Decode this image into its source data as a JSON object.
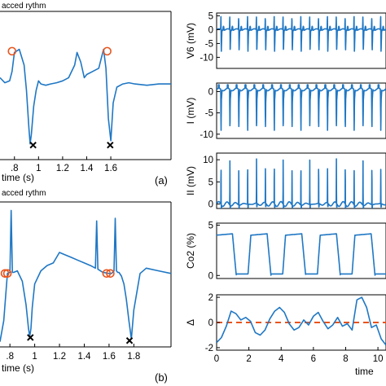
{
  "chart_data": [
    {
      "type": "line",
      "title": "acced rythm",
      "xlabel": "time (s)",
      "panel_label": "(a)",
      "xlim": [
        0.68,
        2.1
      ],
      "ylim": [
        -1.2,
        1.1
      ],
      "x_ticks": [
        0.8,
        1,
        1.2,
        1.4,
        1.6
      ],
      "x_tick_labels": [
        ".8",
        "1",
        "1.2",
        "1.4",
        "1.6"
      ],
      "series": [
        {
          "x": [
            0.68,
            0.72,
            0.76,
            0.78,
            0.8,
            0.84,
            0.88,
            0.9,
            0.92,
            0.93,
            0.94,
            0.96,
            0.98,
            1.0,
            1.02,
            1.06,
            1.1,
            1.15,
            1.2,
            1.25,
            1.3,
            1.32,
            1.35,
            1.38,
            1.4,
            1.45,
            1.5,
            1.52,
            1.54,
            1.56,
            1.58,
            1.6,
            1.62,
            1.65,
            1.7,
            1.75,
            1.8,
            1.9,
            2.0,
            2.1
          ],
          "y": [
            0.1,
            0.02,
            0.05,
            0.2,
            0.5,
            0.55,
            0.3,
            -0.1,
            -0.7,
            -0.95,
            -0.8,
            -0.35,
            -0.1,
            0.05,
            0.0,
            -0.02,
            0.0,
            0.02,
            0.05,
            0.1,
            0.3,
            0.5,
            0.35,
            0.1,
            0.15,
            0.2,
            0.25,
            0.4,
            0.55,
            0.25,
            -0.55,
            -0.9,
            -0.3,
            -0.05,
            0.0,
            0.02,
            0.0,
            -0.02,
            0.0,
            0.0
          ]
        }
      ],
      "markers_circle": [
        {
          "x": 0.78,
          "y": 0.52
        },
        {
          "x": 1.57,
          "y": 0.52
        }
      ],
      "markers_x": [
        {
          "x": 0.955,
          "y": -0.97
        },
        {
          "x": 1.595,
          "y": -0.97
        }
      ]
    },
    {
      "type": "line",
      "title": "acced rythm",
      "xlabel": "time (s)",
      "panel_label": "(b)",
      "xlim": [
        0.72,
        2.1
      ],
      "ylim": [
        -1.3,
        1.4
      ],
      "x_ticks": [
        0.8,
        1,
        1.2,
        1.4,
        1.6,
        1.8
      ],
      "x_tick_labels": ".8,1,1.2,1.4,1.6,1.8",
      "series": [
        {
          "x": [
            0.72,
            0.75,
            0.78,
            0.8,
            0.81,
            0.82,
            0.83,
            0.86,
            0.9,
            0.93,
            0.95,
            0.96,
            0.97,
            0.98,
            1.0,
            1.05,
            1.1,
            1.15,
            1.2,
            1.25,
            1.3,
            1.35,
            1.4,
            1.45,
            1.49,
            1.5,
            1.51,
            1.53,
            1.55,
            1.6,
            1.62,
            1.64,
            1.65,
            1.66,
            1.67,
            1.68,
            1.7,
            1.72,
            1.74,
            1.76,
            1.78,
            1.8,
            1.85,
            1.9,
            2.0,
            2.1
          ],
          "y": [
            -1.2,
            -0.8,
            0.1,
            0.12,
            1.3,
            0.12,
            0.12,
            0.15,
            -0.05,
            -0.5,
            -0.95,
            -1.1,
            -0.95,
            -0.55,
            -0.1,
            0.15,
            0.25,
            0.3,
            0.5,
            0.45,
            0.4,
            0.35,
            0.3,
            0.25,
            0.2,
            1.1,
            0.18,
            0.15,
            0.12,
            0.1,
            0.1,
            0.15,
            1.15,
            0.15,
            0.12,
            0.12,
            0.05,
            -0.1,
            -0.4,
            -0.8,
            -1.15,
            -0.6,
            0.1,
            0.2,
            0.15,
            0.1
          ]
        }
      ],
      "markers_circle": [
        {
          "x": 0.76,
          "y": 0.1
        },
        {
          "x": 0.78,
          "y": 0.1
        },
        {
          "x": 1.58,
          "y": 0.1
        },
        {
          "x": 1.61,
          "y": 0.1
        }
      ],
      "markers_x": [
        {
          "x": 0.965,
          "y": -1.12
        },
        {
          "x": 1.765,
          "y": -1.18
        }
      ]
    },
    {
      "type": "line",
      "ylabel": "V6 (mV)",
      "xlim": [
        0,
        10.5
      ],
      "ylim": [
        -14,
        6
      ],
      "y_ticks": [
        5,
        0,
        -5,
        -10
      ],
      "pattern": "v6",
      "beat_period": 0.55
    },
    {
      "type": "line",
      "ylabel": "I (mV)",
      "xlim": [
        0,
        10.5
      ],
      "ylim": [
        -11,
        2
      ],
      "y_ticks": [
        0,
        -5,
        -10
      ],
      "pattern": "lead1",
      "beat_period": 0.55
    },
    {
      "type": "line",
      "ylabel": "II (mV)",
      "xlim": [
        0,
        10.5
      ],
      "ylim": [
        -1,
        11.5
      ],
      "y_ticks": [
        10,
        5,
        0
      ],
      "pattern": "lead2",
      "beat_period": 0.55
    },
    {
      "type": "line",
      "ylabel": "Co2 (%)",
      "xlim": [
        0,
        10.5
      ],
      "ylim": [
        -0.3,
        5.2
      ],
      "y_ticks": [
        5,
        0
      ],
      "pattern": "co2",
      "breath_period": 2.15
    },
    {
      "type": "line",
      "ylabel": "Δ",
      "xlabel": "time",
      "xlim": [
        0,
        10.5
      ],
      "ylim": [
        -2.2,
        2.2
      ],
      "y_ticks": [
        2,
        0,
        -2
      ],
      "x_ticks": [
        0,
        2,
        4,
        6,
        8,
        10
      ],
      "series": [
        {
          "x": [
            0,
            0.3,
            0.6,
            0.9,
            1.2,
            1.5,
            1.8,
            2.1,
            2.4,
            2.7,
            3.0,
            3.3,
            3.6,
            3.9,
            4.2,
            4.5,
            4.8,
            5.1,
            5.4,
            5.7,
            6.0,
            6.3,
            6.6,
            6.9,
            7.2,
            7.5,
            7.8,
            8.1,
            8.4,
            8.7,
            9.0,
            9.3,
            9.6,
            9.9,
            10.2,
            10.5
          ],
          "y": [
            -1.6,
            -1.2,
            -0.3,
            0.9,
            0.7,
            0.2,
            0.4,
            0.1,
            -0.8,
            -1.0,
            -0.6,
            0.3,
            0.9,
            1.2,
            0.8,
            -0.1,
            -0.6,
            -0.4,
            0.2,
            -0.2,
            0.5,
            0.8,
            0.1,
            -0.5,
            -0.2,
            0.4,
            -0.3,
            -0.1,
            -0.6,
            1.8,
            2.0,
            1.2,
            -0.4,
            -0.2,
            -1.3,
            -1.8
          ]
        }
      ],
      "reference_line": {
        "y": 0,
        "color": "#e8541c"
      }
    }
  ],
  "colors": {
    "trace": "#1f77c4",
    "marker": "#e8541c",
    "axis": "#000000"
  }
}
